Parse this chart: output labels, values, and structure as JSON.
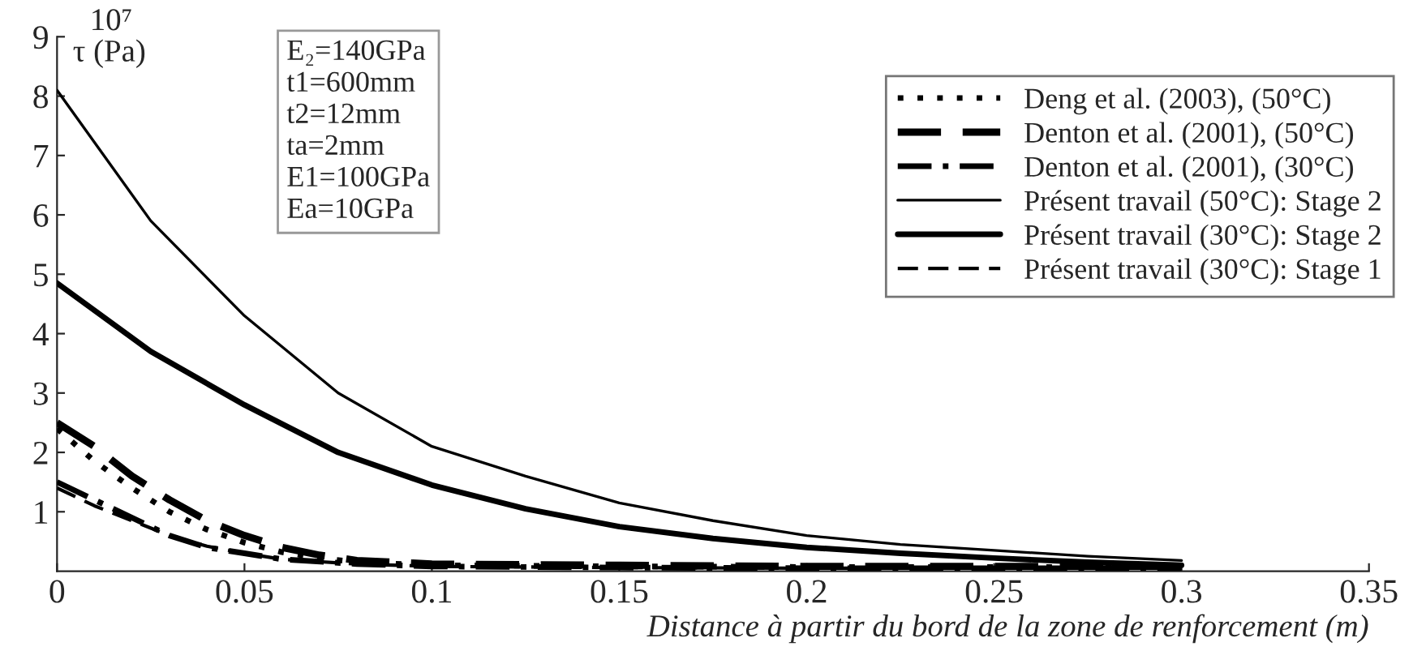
{
  "chart_data": {
    "type": "line",
    "xlabel": "Distance à partir du bord de la zone de renforcement (m)",
    "ylabel": "τ (Pa)",
    "annotations": [
      "10⁷",
      "E₂=140GPa\nt1=600mm\nt2=12mm\nta=2mm\nE1=100GPa\nEa=10GPa"
    ],
    "xlim": [
      0,
      0.35
    ],
    "xticks": [
      0,
      0.05,
      0.1,
      0.15,
      0.2,
      0.25,
      0.3,
      0.35
    ],
    "ylim": [
      0,
      9
    ],
    "yticks": [
      1,
      2,
      3,
      4,
      5,
      6,
      7,
      8,
      9
    ],
    "grid": false,
    "legend": "right",
    "marker": "none",
    "series": [
      {
        "name": "Deng et al. (2003), (50°C)",
        "color": "#000000",
        "line_style": "dotted",
        "x": [
          0,
          0.01,
          0.02,
          0.03,
          0.04,
          0.05,
          0.06,
          0.07,
          0.08,
          0.1,
          0.15,
          0.2,
          0.25,
          0.3
        ],
        "values": [
          2.4,
          1.85,
          1.4,
          1.0,
          0.7,
          0.48,
          0.32,
          0.22,
          0.15,
          0.1,
          0.08,
          0.07,
          0.07,
          0.07
        ]
      },
      {
        "name": "Denton et al. (2001), (50°C)",
        "color": "#000000",
        "line_style": "dashed",
        "x": [
          0,
          0.01,
          0.02,
          0.03,
          0.04,
          0.05,
          0.06,
          0.07,
          0.08,
          0.1,
          0.15,
          0.2,
          0.25,
          0.3
        ],
        "values": [
          2.5,
          2.1,
          1.6,
          1.2,
          0.85,
          0.6,
          0.4,
          0.27,
          0.18,
          0.12,
          0.1,
          0.08,
          0.08,
          0.08
        ]
      },
      {
        "name": "Denton et al. (2001), (30°C)",
        "color": "#000000",
        "line_style": "dashdot",
        "x": [
          0,
          0.01,
          0.02,
          0.03,
          0.04,
          0.05,
          0.06,
          0.08,
          0.1,
          0.15,
          0.2,
          0.25,
          0.3
        ],
        "values": [
          1.5,
          1.2,
          0.9,
          0.6,
          0.4,
          0.3,
          0.2,
          0.12,
          0.08,
          0.06,
          0.05,
          0.05,
          0.05
        ]
      },
      {
        "name": "Présent travail (50°C): Stage 2",
        "color": "#000000",
        "line_style": "solid",
        "x": [
          0,
          0.025,
          0.05,
          0.075,
          0.1,
          0.125,
          0.15,
          0.175,
          0.2,
          0.225,
          0.25,
          0.275,
          0.3
        ],
        "values": [
          8.1,
          5.9,
          4.3,
          3.0,
          2.1,
          1.6,
          1.15,
          0.85,
          0.6,
          0.45,
          0.35,
          0.25,
          0.18
        ]
      },
      {
        "name": "Présent travail (30°C): Stage 2",
        "color": "#000000",
        "line_style": "solid",
        "x": [
          0,
          0.025,
          0.05,
          0.075,
          0.1,
          0.125,
          0.15,
          0.175,
          0.2,
          0.225,
          0.25,
          0.275,
          0.3
        ],
        "values": [
          4.85,
          3.7,
          2.8,
          2.0,
          1.45,
          1.05,
          0.75,
          0.55,
          0.4,
          0.3,
          0.22,
          0.15,
          0.1
        ]
      },
      {
        "name": "Présent travail (30°C): Stage 1",
        "color": "#000000",
        "line_style": "dashed",
        "x": [
          0,
          0.01,
          0.02,
          0.03,
          0.04,
          0.05,
          0.06,
          0.08,
          0.1,
          0.15,
          0.2,
          0.25,
          0.3
        ],
        "values": [
          1.4,
          1.1,
          0.85,
          0.6,
          0.42,
          0.3,
          0.2,
          0.12,
          0.08,
          0.06,
          0.05,
          0.05,
          0.05
        ]
      }
    ]
  }
}
